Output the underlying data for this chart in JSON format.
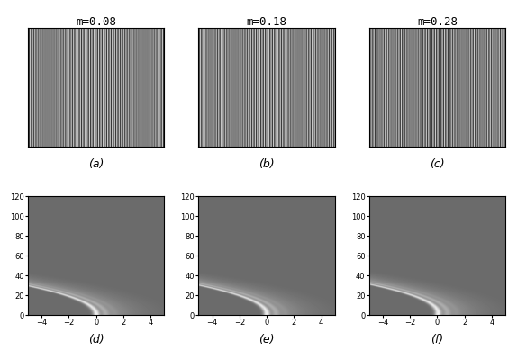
{
  "m_values": [
    0.08,
    0.18,
    0.28
  ],
  "panel_labels_top": [
    "(a)",
    "(b)",
    "(c)"
  ],
  "panel_labels_bot": [
    "(d)",
    "(e)",
    "(f)"
  ],
  "x_range": [
    -5,
    5
  ],
  "y_range": [
    0,
    120
  ],
  "x_ticks": [
    -4,
    -2,
    0,
    2,
    4
  ],
  "y_ticks": [
    0,
    20,
    40,
    60,
    80,
    100,
    120
  ],
  "background_color": "#ffffff",
  "colormap": "gray",
  "title_fontsize": 9,
  "label_fontsize": 8,
  "tick_fontsize": 6,
  "fringe_base_freq": 6.0,
  "fringe_samples": 1000
}
